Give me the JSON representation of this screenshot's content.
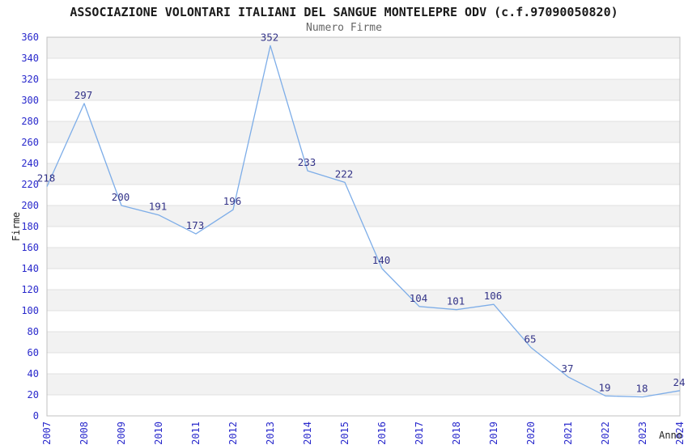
{
  "header": {
    "title": "ASSOCIAZIONE VOLONTARI ITALIANI DEL SANGUE MONTELEPRE ODV (c.f.97090050820)",
    "subtitle": "Numero Firme"
  },
  "chart_data": {
    "type": "line",
    "title": "ASSOCIAZIONE VOLONTARI ITALIANI DEL SANGUE MONTELEPRE ODV (c.f.97090050820)",
    "subtitle": "Numero Firme",
    "xlabel": "Anno",
    "ylabel": "Firme",
    "categories": [
      "2007",
      "2008",
      "2009",
      "2010",
      "2011",
      "2012",
      "2013",
      "2014",
      "2015",
      "2016",
      "2017",
      "2018",
      "2019",
      "2020",
      "2021",
      "2022",
      "2023",
      "2024"
    ],
    "values": [
      218,
      297,
      200,
      191,
      173,
      196,
      352,
      233,
      222,
      140,
      104,
      101,
      106,
      65,
      37,
      19,
      18,
      24
    ],
    "ylim": [
      0,
      360
    ],
    "ytick_step": 20,
    "grid": true,
    "banding": true,
    "legend": "none",
    "colors": {
      "line": "#7dade8",
      "data_label": "#333388",
      "tick_label": "#2929cc",
      "axis_title": "#222222",
      "band": "#f2f2f2",
      "gridline": "#e0e0e0",
      "plot_border": "#c0c0c0",
      "background": "#ffffff"
    }
  }
}
